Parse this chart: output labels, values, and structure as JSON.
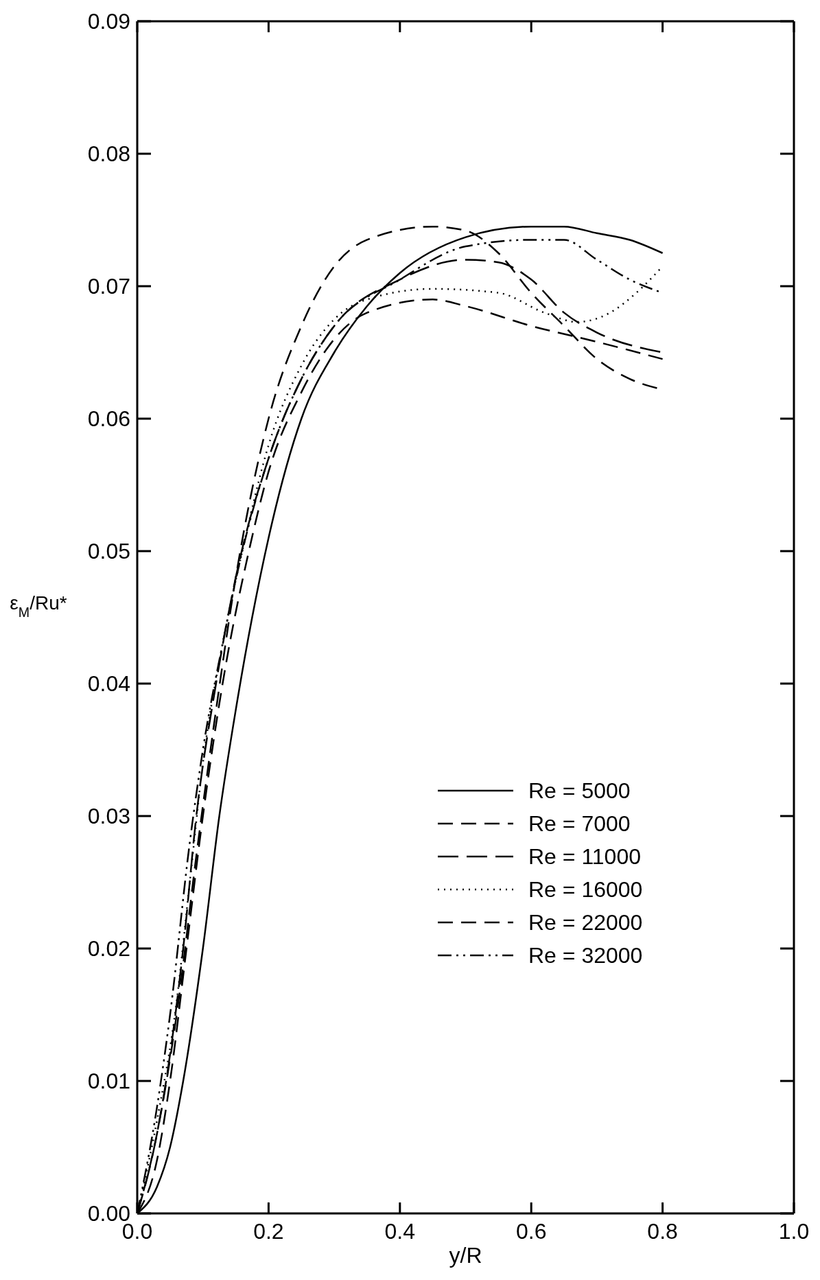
{
  "chart_data": {
    "type": "line",
    "xlabel": "y/R",
    "ylabel": "ε$_{M}$/Ru*",
    "xlim": [
      0,
      1
    ],
    "xticks": [
      {
        "value": 0,
        "label": "0.0"
      },
      {
        "value": 0.2,
        "label": "0.2"
      },
      {
        "value": 0.4,
        "label": "0.4"
      },
      {
        "value": 0.6,
        "label": "0.6"
      },
      {
        "value": 0.8,
        "label": "0.8"
      },
      {
        "value": 1,
        "label": "1.0"
      }
    ],
    "ylim": [
      0,
      0.09
    ],
    "yticks": [
      {
        "value": 0,
        "label": "0.00"
      },
      {
        "value": 0.01,
        "label": "0.01"
      },
      {
        "value": 0.02,
        "label": "0.02"
      },
      {
        "value": 0.03,
        "label": "0.03"
      },
      {
        "value": 0.04,
        "label": "0.04"
      },
      {
        "value": 0.05,
        "label": "0.05"
      },
      {
        "value": 0.06,
        "label": "0.06"
      },
      {
        "value": 0.07,
        "label": "0.07"
      },
      {
        "value": 0.08,
        "label": "0.08"
      },
      {
        "value": 0.09,
        "label": "0.09"
      }
    ],
    "grid": false,
    "legend": "bottom right",
    "marker": "none",
    "series": [
      {
        "name": "Re = 5000",
        "color": "#000000",
        "line_style": "solid",
        "x": [
          0,
          0.03,
          0.05,
          0.07,
          0.1,
          0.125,
          0.15,
          0.175,
          0.2,
          0.25,
          0.3,
          0.35,
          0.4,
          0.5,
          0.6,
          0.65,
          0.7,
          0.75,
          0.8
        ],
        "values": [
          0,
          0.002,
          0.005,
          0.01,
          0.02,
          0.03,
          0.038,
          0.045,
          0.051,
          0.06,
          0.065,
          0.0685,
          0.071,
          0.0737,
          0.0745,
          0.0745,
          0.074,
          0.0735,
          0.0725
        ]
      },
      {
        "name": "Re = 7000",
        "color": "#000000",
        "line_style": "dashed",
        "x": [
          0,
          0.03,
          0.05,
          0.075,
          0.1,
          0.13,
          0.17,
          0.2,
          0.25,
          0.3,
          0.35,
          0.45,
          0.5,
          0.6,
          0.7,
          0.8
        ],
        "values": [
          0,
          0.004,
          0.01,
          0.02,
          0.03,
          0.04,
          0.05,
          0.056,
          0.062,
          0.066,
          0.068,
          0.069,
          0.0685,
          0.067,
          0.0658,
          0.0645
        ]
      },
      {
        "name": "Re = 11000",
        "color": "#000000",
        "line_style": "dashed",
        "x": [
          0,
          0.03,
          0.05,
          0.07,
          0.09,
          0.12,
          0.15,
          0.2,
          0.25,
          0.3,
          0.4,
          0.5,
          0.55,
          0.6,
          0.65,
          0.7,
          0.8
        ],
        "values": [
          0,
          0.006,
          0.012,
          0.02,
          0.03,
          0.04,
          0.048,
          0.057,
          0.063,
          0.067,
          0.0705,
          0.072,
          0.0718,
          0.0705,
          0.068,
          0.0665,
          0.065
        ]
      },
      {
        "name": "Re = 16000",
        "color": "#000000",
        "line_style": "dotted",
        "x": [
          0,
          0.03,
          0.06,
          0.08,
          0.1,
          0.13,
          0.16,
          0.2,
          0.25,
          0.3,
          0.35,
          0.45,
          0.55,
          0.62,
          0.67,
          0.72,
          0.76,
          0.8
        ],
        "values": [
          0,
          0.007,
          0.016,
          0.025,
          0.034,
          0.043,
          0.05,
          0.058,
          0.064,
          0.0675,
          0.069,
          0.0698,
          0.0695,
          0.068,
          0.0673,
          0.068,
          0.0695,
          0.0715
        ]
      },
      {
        "name": "Re = 22000",
        "color": "#000000",
        "line_style": "dashed",
        "x": [
          0,
          0.03,
          0.06,
          0.09,
          0.12,
          0.15,
          0.2,
          0.25,
          0.3,
          0.35,
          0.45,
          0.5,
          0.55,
          0.6,
          0.65,
          0.7,
          0.75,
          0.8
        ],
        "values": [
          0,
          0.006,
          0.015,
          0.027,
          0.038,
          0.048,
          0.06,
          0.067,
          0.0715,
          0.0735,
          0.0745,
          0.0742,
          0.0725,
          0.0695,
          0.067,
          0.0645,
          0.063,
          0.0622
        ]
      },
      {
        "name": "Re = 32000",
        "color": "#000000",
        "line_style": "dashdotdot",
        "x": [
          0,
          0.03,
          0.05,
          0.08,
          0.1,
          0.13,
          0.16,
          0.2,
          0.25,
          0.3,
          0.4,
          0.5,
          0.6,
          0.65,
          0.7,
          0.75,
          0.8
        ],
        "values": [
          0,
          0.008,
          0.015,
          0.028,
          0.035,
          0.043,
          0.05,
          0.057,
          0.063,
          0.067,
          0.0705,
          0.073,
          0.0735,
          0.0735,
          0.072,
          0.0705,
          0.0695
        ]
      }
    ]
  }
}
